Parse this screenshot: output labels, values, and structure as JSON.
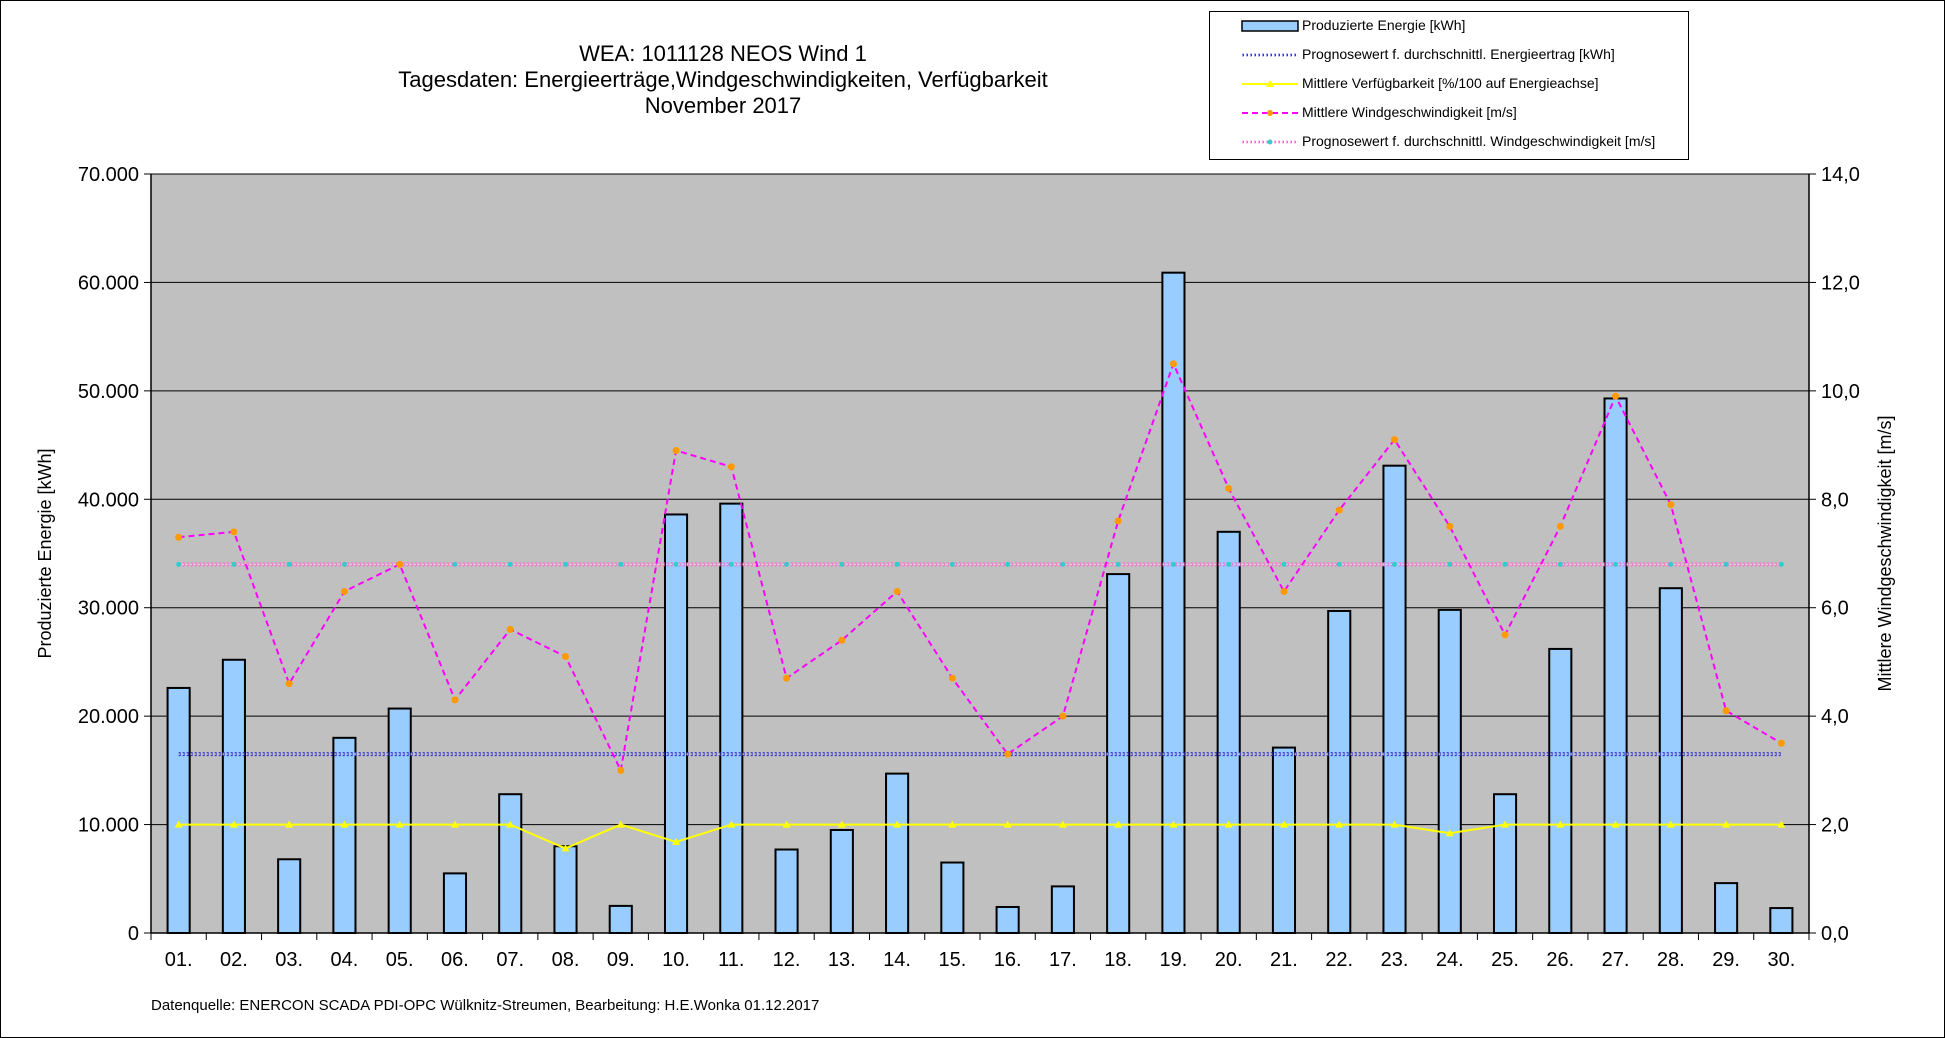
{
  "title": {
    "line1": "WEA: 1011128             NEOS Wind 1",
    "line2": "Tagesdaten:  Energieerträge,Windgeschwindigkeiten,  Verfügbarkeit",
    "line3": "November 2017"
  },
  "source": "Datenquelle:  ENERCON  SCADA PDI-OPC Wülknitz-Streumen,    Bearbeitung: H.E.Wonka   01.12.2017",
  "legend": [
    {
      "label": "Produzierte Energie [kWh]",
      "symbol": "bar"
    },
    {
      "label": "Prognosewert f. durchschnittl. Energieertrag  [kWh]",
      "symbol": "dotted-blue"
    },
    {
      "label": "Mittlere Verfügbarkeit [%/100 auf Energieachse]",
      "symbol": "yellow-triangle"
    },
    {
      "label": "Mittlere Windgeschwindigkeit [m/s]",
      "symbol": "magenta-dash"
    },
    {
      "label": "Prognosewert f. durchschnittl. Windgeschwindigkeit [m/s]",
      "symbol": "dotted-magenta"
    }
  ],
  "colors": {
    "plot_background": "#c0c0c0",
    "bar_fill": "#99ccff",
    "bar_stroke": "#000000",
    "energy_forecast": "#3333cc",
    "availability": "#ffff00",
    "wind_speed": "#ff00ff",
    "wind_marker": "#ff9900",
    "wind_forecast": "#ff66cc",
    "wind_forecast_marker": "#33cccc"
  },
  "chart_data": {
    "type": "bar",
    "categories": [
      "01.",
      "02.",
      "03.",
      "04.",
      "05.",
      "06.",
      "07.",
      "08.",
      "09.",
      "10.",
      "11.",
      "12.",
      "13.",
      "14.",
      "15.",
      "16.",
      "17.",
      "18.",
      "19.",
      "20.",
      "21.",
      "22.",
      "23.",
      "24.",
      "25.",
      "26.",
      "27.",
      "28.",
      "29.",
      "30."
    ],
    "ylabel": "Produzierte Energie [kWh]",
    "y2label": "Mittlere Windgeschwindigkeit [m/s]",
    "ylim": [
      0,
      70000
    ],
    "y2lim": [
      0,
      14
    ],
    "yticks": [
      "0",
      "10.000",
      "20.000",
      "30.000",
      "40.000",
      "50.000",
      "60.000",
      "70.000"
    ],
    "y2ticks": [
      "0,0",
      "2,0",
      "4,0",
      "6,0",
      "8,0",
      "10,0",
      "12,0",
      "14,0"
    ],
    "grid": true,
    "legend_position": "top-right",
    "series": [
      {
        "name": "Produzierte Energie [kWh]",
        "type": "bar",
        "axis": "left",
        "values": [
          22600,
          25200,
          6800,
          18000,
          20700,
          5500,
          12800,
          8000,
          2500,
          38600,
          39600,
          7700,
          9500,
          14700,
          6500,
          2400,
          4300,
          33100,
          60900,
          37000,
          17100,
          29700,
          43100,
          29800,
          12800,
          26200,
          49300,
          31800,
          4600,
          2300
        ]
      },
      {
        "name": "Prognosewert f. durchschnittl. Energieertrag  [kWh]",
        "type": "line",
        "axis": "left",
        "values": [
          16500,
          16500,
          16500,
          16500,
          16500,
          16500,
          16500,
          16500,
          16500,
          16500,
          16500,
          16500,
          16500,
          16500,
          16500,
          16500,
          16500,
          16500,
          16500,
          16500,
          16500,
          16500,
          16500,
          16500,
          16500,
          16500,
          16500,
          16500,
          16500,
          16500
        ]
      },
      {
        "name": "Mittlere Verfügbarkeit [%/100 auf Energieachse]",
        "type": "line",
        "axis": "left",
        "values": [
          10000,
          10000,
          10000,
          10000,
          10000,
          10000,
          10000,
          7800,
          10000,
          8400,
          10000,
          10000,
          10000,
          10000,
          10000,
          10000,
          10000,
          10000,
          10000,
          10000,
          10000,
          10000,
          10000,
          9200,
          10000,
          10000,
          10000,
          10000,
          10000,
          10000
        ]
      },
      {
        "name": "Mittlere Windgeschwindigkeit [m/s]",
        "type": "line",
        "axis": "right",
        "values": [
          7.3,
          7.4,
          4.6,
          6.3,
          6.8,
          4.3,
          5.6,
          5.1,
          3.0,
          8.9,
          8.6,
          4.7,
          5.4,
          6.3,
          4.7,
          3.3,
          4.0,
          7.6,
          10.5,
          8.2,
          6.3,
          7.8,
          9.1,
          7.5,
          5.5,
          7.5,
          9.9,
          7.9,
          4.1,
          3.5
        ]
      },
      {
        "name": "Prognosewert f. durchschnittl. Windgeschwindigkeit [m/s]",
        "type": "line",
        "axis": "right",
        "values": [
          6.8,
          6.8,
          6.8,
          6.8,
          6.8,
          6.8,
          6.8,
          6.8,
          6.8,
          6.8,
          6.8,
          6.8,
          6.8,
          6.8,
          6.8,
          6.8,
          6.8,
          6.8,
          6.8,
          6.8,
          6.8,
          6.8,
          6.8,
          6.8,
          6.8,
          6.8,
          6.8,
          6.8,
          6.8,
          6.8
        ]
      }
    ]
  }
}
